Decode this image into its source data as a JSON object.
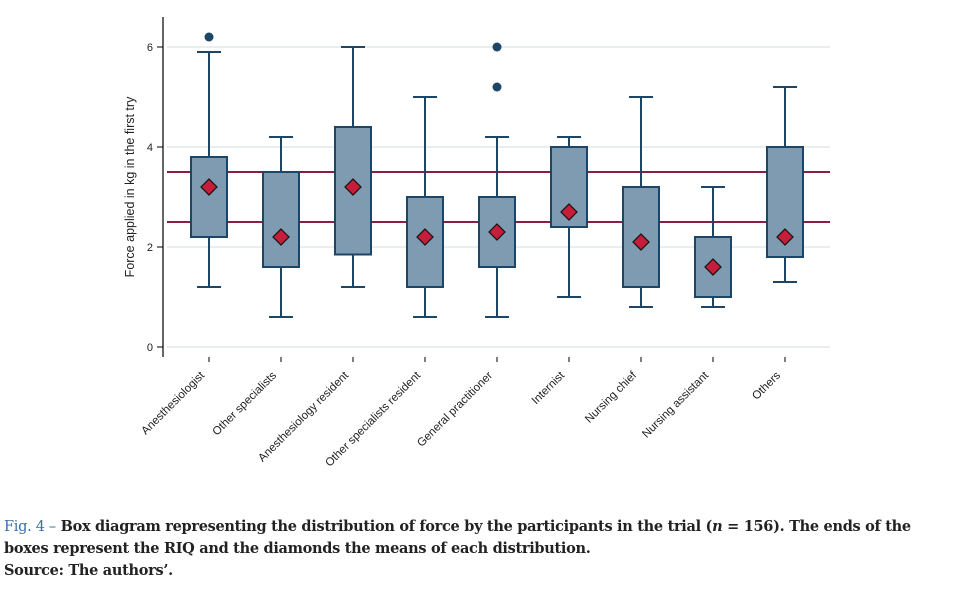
{
  "chart_data": {
    "type": "box",
    "title": "",
    "xlabel": "",
    "ylabel": "Force applied in kg in the first try",
    "ylim": [
      -0.2,
      6.6
    ],
    "yticks": [
      0,
      2,
      4,
      6
    ],
    "grid": true,
    "reference_lines": [
      2.5,
      3.5
    ],
    "categories": [
      "Anesthesiologist",
      "Other specialists",
      "Anesthesiology resident",
      "Other specialists resident",
      "General practitioner",
      "Internist",
      "Nursing chief",
      "Nursing assistant",
      "Others"
    ],
    "boxes": [
      {
        "whisker_low": 1.2,
        "q1": 2.2,
        "q3": 3.8,
        "whisker_high": 5.9,
        "mean": 3.2,
        "outliers": [
          6.2
        ]
      },
      {
        "whisker_low": 0.6,
        "q1": 1.6,
        "q3": 3.5,
        "whisker_high": 4.2,
        "mean": 2.2,
        "outliers": []
      },
      {
        "whisker_low": 1.2,
        "q1": 1.85,
        "q3": 4.4,
        "whisker_high": 6.0,
        "mean": 3.2,
        "outliers": []
      },
      {
        "whisker_low": 0.6,
        "q1": 1.2,
        "q3": 3.0,
        "whisker_high": 5.0,
        "mean": 2.2,
        "outliers": []
      },
      {
        "whisker_low": 0.6,
        "q1": 1.6,
        "q3": 3.0,
        "whisker_high": 4.2,
        "mean": 2.3,
        "outliers": [
          5.2,
          6.0
        ]
      },
      {
        "whisker_low": 1.0,
        "q1": 2.4,
        "q3": 4.0,
        "whisker_high": 4.2,
        "mean": 2.7,
        "outliers": []
      },
      {
        "whisker_low": 0.8,
        "q1": 1.2,
        "q3": 3.2,
        "whisker_high": 5.0,
        "mean": 2.1,
        "outliers": []
      },
      {
        "whisker_low": 0.8,
        "q1": 1.0,
        "q3": 2.2,
        "whisker_high": 3.2,
        "mean": 1.6,
        "outliers": []
      },
      {
        "whisker_low": 1.3,
        "q1": 1.8,
        "q3": 4.0,
        "whisker_high": 5.2,
        "mean": 2.2,
        "outliers": []
      }
    ],
    "colors": {
      "box_fill": "#7f9bb1",
      "box_stroke": "#1d4566",
      "mean_marker": "#c41e3a",
      "reference_line": "#8b1d42",
      "grid": "#e3e8ea"
    }
  },
  "caption": {
    "fig_label": "Fig. 4 –",
    "text_before_n": " Box diagram representing the distribution of force by the participants in the trial (",
    "n_symbol": "n",
    "text_after_n": " = 156). The ends of the boxes represent the RIQ and the diamonds the means of each distribution.",
    "source": "Source: The authors’."
  }
}
